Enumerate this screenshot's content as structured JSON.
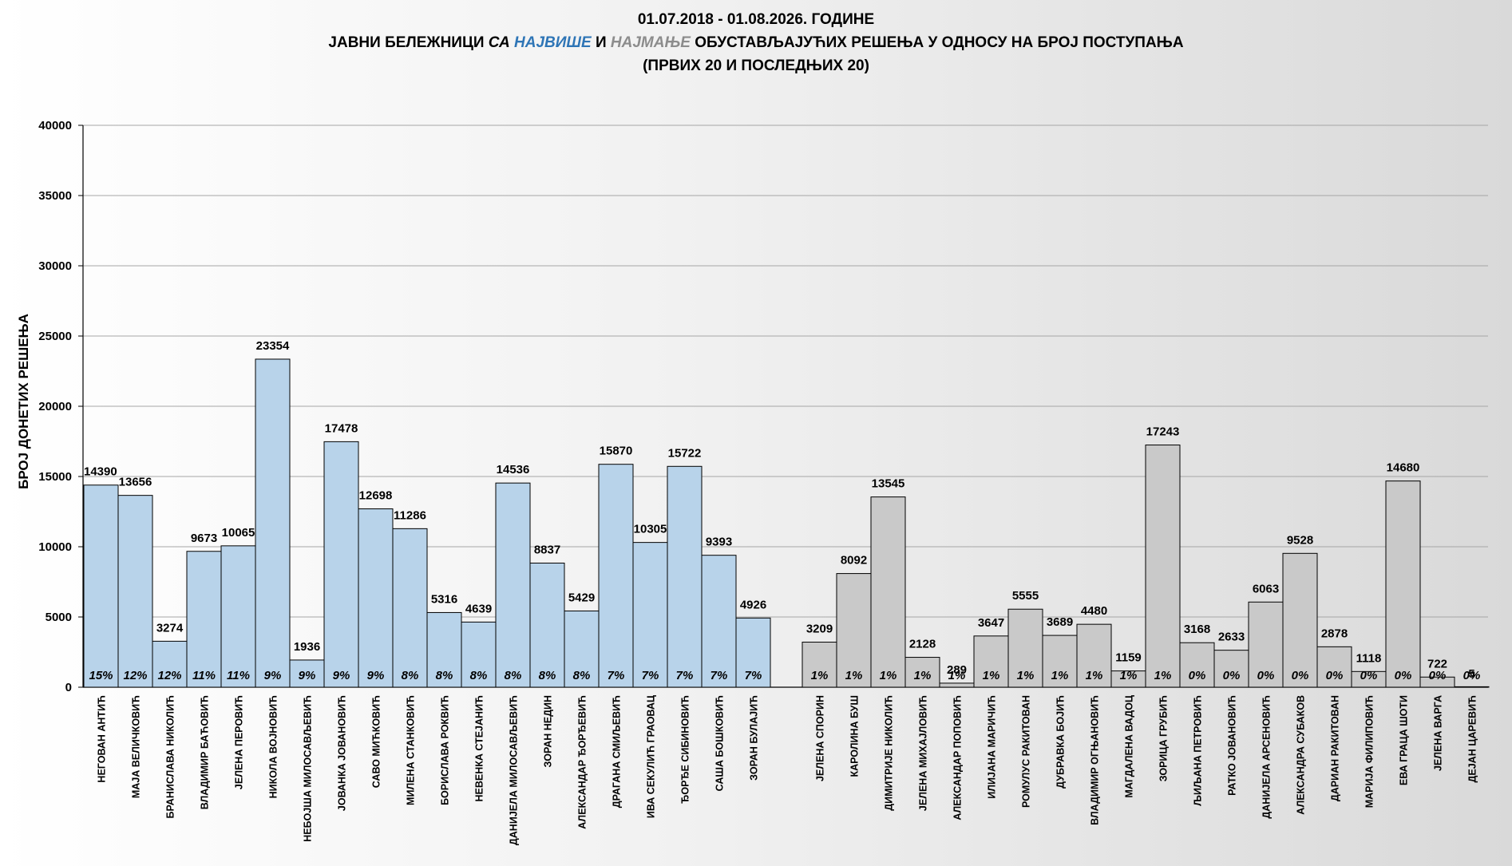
{
  "title": {
    "line1": "01.07.2018 - 01.08.2026. ГОДИНЕ",
    "line2_a": "ЈАВНИ БЕЛЕЖНИЦИ ",
    "line2_b": "СА ",
    "line2_c": "НАЈВИШЕ",
    "line2_d": " И ",
    "line2_e": "НАЈМАЊЕ",
    "line2_f": " ОБУСТАВЉАЈУЋИХ РЕШЕЊА У ОДНОСУ НА БРОЈ ПОСТУПАЊА",
    "line3": "(ПРВИХ 20 И ПОСЛЕДЊИХ 20)"
  },
  "colors": {
    "top_bar": "#b8d3ea",
    "bottom_bar": "#c9c9c9",
    "highlight_blue": "#2e75b6",
    "highlight_gray": "#8c8c8c"
  },
  "chart_data": {
    "type": "bar",
    "ylabel": "БРОЈ ДОНЕТИХ РЕШЕЊА",
    "ylim": [
      0,
      40000
    ],
    "yticks": [
      0,
      5000,
      10000,
      15000,
      20000,
      25000,
      30000,
      35000,
      40000
    ],
    "grid": true,
    "legend": "none",
    "series": [
      {
        "group": "top20",
        "categories": [
          "НЕГОВАН АНТИЋ",
          "МАЈА ВЕЛИЧКОВИЋ",
          "БРАНИСЛАВА НИКОЛИЋ",
          "ВЛАДИМИР БАЋОВИЋ",
          "ЈЕЛЕНА ПЕРОВИЋ",
          "НИКОЛА ВОЈНОВИЋ",
          "НЕБОЈША МИЛОСАВЉЕВИЋ",
          "ЈОВАНКА ЈОВАНОВИЋ",
          "САВО МИЋКОВИЋ",
          "МИЛЕНА СТАНКОВИЋ",
          "БОРИСЛАВА РОКВИЋ",
          "НЕВЕНКА СТЕЈАНИЋ",
          "ДАНИЈЕЛА МИЛОСАВЉЕВИЋ",
          "ЗОРАН НЕДИН",
          "АЛЕКСАНДАР ЂОРЂЕВИЋ",
          "ДРАГАНА СМИЉЕВИЋ",
          "ИВА СЕКУЛИЋ ГРАОВАЦ",
          "ЂОРЂЕ СИБИНОВИЋ",
          "САША БОШКОВИЋ",
          "ЗОРАН БУЛАЈИЋ"
        ],
        "values": [
          14390,
          13656,
          3274,
          9673,
          10065,
          23354,
          1936,
          17478,
          12698,
          11286,
          5316,
          4639,
          14536,
          8837,
          5429,
          15870,
          10305,
          15722,
          9393,
          4926
        ],
        "value_labels": [
          "14390",
          "13656",
          "3274",
          "9673",
          "10065",
          "23354",
          "1936",
          "17478",
          "12698",
          "11286",
          "5316",
          "4639",
          "14536",
          "8837",
          "5429",
          "15870",
          "10305",
          "15722",
          "9393",
          "4926"
        ],
        "percent_labels": [
          "15%",
          "12%",
          "12%",
          "11%",
          "11%",
          "9%",
          "9%",
          "9%",
          "9%",
          "8%",
          "8%",
          "8%",
          "8%",
          "8%",
          "8%",
          "7%",
          "7%",
          "7%",
          "7%",
          "7%"
        ]
      },
      {
        "group": "bottom20",
        "categories": [
          "ЈЕЛЕНА СПОРИН",
          "КАРОЛИНА БУШ",
          "ДИМИТРИЈЕ НИКОЛИЋ",
          "ЈЕЛЕНА МИХАЈЛОВИЋ",
          "АЛЕКСАНДАР ПОПОВИЋ",
          "ИЛИЈАНА МАРИЧИЋ",
          "РОМУЛУС РАКИТОВАН",
          "ДУБРАВКА БОЈИЋ",
          "ВЛАДИМИР ОГЊАНОВИЋ",
          "МАГДАЛЕНА ВАДОЦ",
          "ЗОРИЦА ГРУБИЋ",
          "ЉИЉАНА ПЕТРОВИЋ",
          "РАТКО ЈОВАНОВИЋ",
          "ДАНИЈЕЛА АРСЕНОВИЋ",
          "АЛЕКСАНДРА СУБАКОВ",
          "ДАРИАН РАКИТОВАН",
          "МАРИЈА ФИЛИПОВИЋ",
          "ЕВА ГРАЦА ШОТИ",
          "ЈЕЛЕНА ВАРГА",
          "ДЕЈАН ЦАРЕВИЋ"
        ],
        "values": [
          3209,
          8092,
          13545,
          2128,
          289,
          3647,
          5555,
          3689,
          4480,
          1159,
          17243,
          3168,
          2633,
          6063,
          9528,
          2878,
          1118,
          14680,
          722,
          5
        ],
        "value_labels": [
          "3209",
          "8092",
          "13545",
          "2128",
          "289",
          "3647",
          "5555",
          "3689",
          "4480",
          "1159",
          "17243",
          "3168",
          "2633",
          "6063",
          "9528",
          "2878",
          "1118",
          "14680",
          "722",
          "5"
        ],
        "percent_labels": [
          "1%",
          "1%",
          "1%",
          "1%",
          "1%",
          "1%",
          "1%",
          "1%",
          "1%",
          "1%",
          "1%",
          "0%",
          "0%",
          "0%",
          "0%",
          "0%",
          "0%",
          "0%",
          "0%",
          "0%"
        ]
      }
    ]
  }
}
